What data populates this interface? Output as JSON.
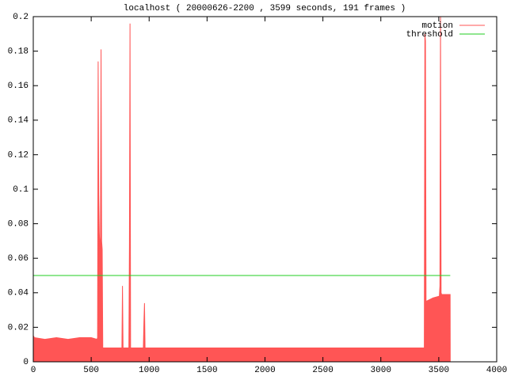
{
  "chart_data": {
    "type": "area",
    "title": "localhost ( 20000626-2200 , 3599 seconds, 191 frames )",
    "xlim": [
      0,
      4000
    ],
    "xticks": [
      0,
      500,
      1000,
      1500,
      2000,
      2500,
      3000,
      3500,
      4000
    ],
    "ylim": [
      0,
      0.2
    ],
    "yticks": [
      0,
      0.02,
      0.04,
      0.06,
      0.08,
      0.1,
      0.12,
      0.14,
      0.16,
      0.18,
      0.2
    ],
    "legend": "top-right",
    "series": [
      {
        "name": "motion",
        "color": "#ff5555",
        "fill": true,
        "x": [
          0,
          1,
          10,
          100,
          200,
          300,
          400,
          500,
          550,
          555,
          560,
          565,
          570,
          575,
          580,
          585,
          590,
          595,
          600,
          700,
          765,
          770,
          775,
          825,
          830,
          835,
          840,
          950,
          955,
          960,
          965,
          1500,
          2000,
          2500,
          3000,
          3370,
          3375,
          3380,
          3385,
          3390,
          3450,
          3505,
          3510,
          3515,
          3520,
          3525,
          3598,
          3599
        ],
        "values": [
          0,
          0.015,
          0.014,
          0.013,
          0.014,
          0.013,
          0.014,
          0.014,
          0.013,
          0.014,
          0.174,
          0.097,
          0.075,
          0.065,
          0.072,
          0.181,
          0.07,
          0.065,
          0.008,
          0.008,
          0.008,
          0.044,
          0.008,
          0.008,
          0.068,
          0.196,
          0.008,
          0.008,
          0.023,
          0.034,
          0.008,
          0.008,
          0.008,
          0.008,
          0.008,
          0.008,
          0.007,
          0.19,
          0.186,
          0.035,
          0.037,
          0.038,
          0.044,
          0.2,
          0.04,
          0.039,
          0.039,
          0
        ]
      },
      {
        "name": "threshold",
        "color": "#22cc22",
        "fill": false,
        "x": [
          0,
          3599
        ],
        "values": [
          0.05,
          0.05
        ]
      }
    ]
  }
}
